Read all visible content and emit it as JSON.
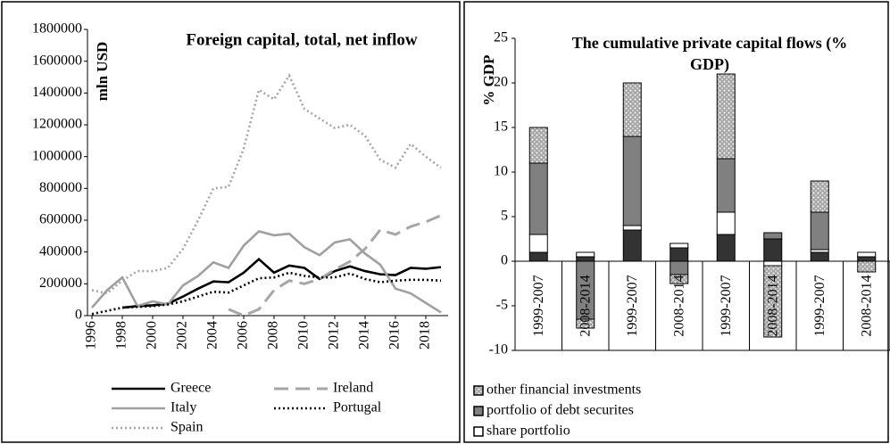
{
  "chart_data": [
    {
      "type": "line",
      "title": "Foreign capital, total, net inflow",
      "y_label": "mln USD",
      "x": [
        1996,
        1997,
        1998,
        1999,
        2000,
        2001,
        2002,
        2003,
        2004,
        2005,
        2006,
        2007,
        2008,
        2009,
        2010,
        2011,
        2012,
        2013,
        2014,
        2015,
        2016,
        2017,
        2018,
        2019
      ],
      "xlim": [
        1996,
        2019
      ],
      "xticks": [
        1996,
        1998,
        2000,
        2002,
        2004,
        2006,
        2008,
        2010,
        2012,
        2014,
        2016,
        2018
      ],
      "ylim": [
        0,
        1800000
      ],
      "yticks": [
        0,
        200000,
        400000,
        600000,
        800000,
        1000000,
        1200000,
        1400000,
        1600000,
        1800000
      ],
      "series": [
        {
          "name": "Greece",
          "color": "#000000",
          "style": "solid",
          "values": [
            null,
            null,
            50000,
            60000,
            65000,
            75000,
            120000,
            170000,
            215000,
            210000,
            270000,
            355000,
            270000,
            315000,
            300000,
            230000,
            280000,
            310000,
            280000,
            260000,
            255000,
            300000,
            295000,
            305000
          ]
        },
        {
          "name": "Ireland",
          "color": "#a6a6a6",
          "style": "dashed",
          "values": [
            null,
            null,
            null,
            null,
            null,
            null,
            null,
            null,
            null,
            40000,
            0,
            40000,
            160000,
            220000,
            200000,
            230000,
            290000,
            340000,
            420000,
            540000,
            510000,
            560000,
            590000,
            630000
          ]
        },
        {
          "name": "Italy",
          "color": "#a0a0a0",
          "style": "solid",
          "values": [
            50000,
            160000,
            240000,
            60000,
            90000,
            70000,
            190000,
            250000,
            335000,
            300000,
            440000,
            530000,
            505000,
            515000,
            430000,
            380000,
            460000,
            480000,
            390000,
            320000,
            170000,
            140000,
            80000,
            20000
          ]
        },
        {
          "name": "Portugal",
          "color": "#000000",
          "style": "dotted",
          "values": [
            10000,
            30000,
            50000,
            55000,
            60000,
            70000,
            90000,
            120000,
            150000,
            145000,
            190000,
            235000,
            240000,
            270000,
            250000,
            240000,
            240000,
            265000,
            230000,
            210000,
            220000,
            225000,
            225000,
            220000
          ]
        },
        {
          "name": "Spain",
          "color": "#a6a6a6",
          "style": "dotted",
          "values": [
            160000,
            140000,
            220000,
            280000,
            280000,
            300000,
            420000,
            600000,
            800000,
            810000,
            1050000,
            1420000,
            1360000,
            1510000,
            1300000,
            1240000,
            1180000,
            1200000,
            1130000,
            980000,
            930000,
            1080000,
            1000000,
            930000
          ]
        }
      ]
    },
    {
      "type": "stacked_bar",
      "title": "The cumulative private capital flows (% GDP)",
      "y_label": "% GDP",
      "categories": [
        "1999-2007",
        "2008-2014",
        "1999-2007",
        "2008-2014",
        "1999-2007",
        "2008-2014",
        "1999-2007",
        "2008-2014"
      ],
      "ylim": [
        -10,
        25
      ],
      "yticks": [
        -10,
        -5,
        0,
        5,
        10,
        15,
        20,
        25
      ],
      "series": [
        {
          "color": "#333333",
          "values": [
            1,
            0.5,
            3.5,
            1.5,
            3,
            2.5,
            1,
            0.5
          ]
        },
        {
          "name": "share portfolio",
          "color": "#ffffff",
          "values": [
            2,
            0.5,
            0.5,
            0.5,
            2.5,
            -0.5,
            0.3,
            0.5
          ]
        },
        {
          "name": "portfolio of debt securites",
          "color": "#808080",
          "values": [
            8,
            -6.5,
            10,
            -1.5,
            6,
            0.7,
            4.2,
            0
          ]
        },
        {
          "name": "other financial investments",
          "color": "#a6a6a6",
          "pattern": "dots",
          "values": [
            4,
            -1,
            6,
            -1,
            9.5,
            -8,
            3.5,
            -1.2
          ]
        }
      ]
    }
  ]
}
